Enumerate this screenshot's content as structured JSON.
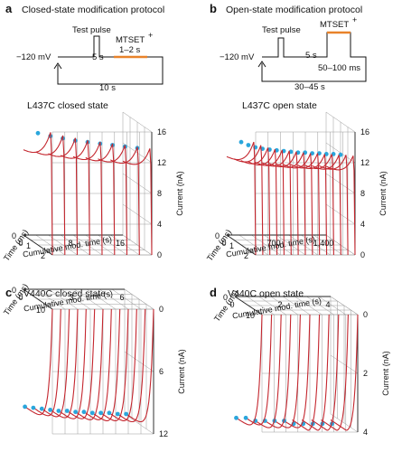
{
  "panels": {
    "a": {
      "letter": "a",
      "protocol_title": "Closed-state modification protocol",
      "holding": "−120 mV",
      "test_pulse": "Test pulse",
      "mtset": "MTSET",
      "mtset_sup": "+",
      "gap": "5 s",
      "mtset_duration": "1–2 s",
      "cycle": "10 s",
      "plot_title": "L437C closed state",
      "y_label": "Current (nA)",
      "y_ticks": [
        "0",
        "4",
        "8",
        "12",
        "16"
      ],
      "x_label": "Cumulative mod. time (s)",
      "x_ticks": [
        "0",
        "8",
        "16"
      ],
      "t_label": "Time (ms)",
      "t_ticks": [
        "0",
        "1",
        "2"
      ]
    },
    "b": {
      "letter": "b",
      "protocol_title": "Open-state modification protocol",
      "holding": "−120 mV",
      "test_pulse": "Test pulse",
      "mtset": "MTSET",
      "mtset_sup": "+",
      "gap": "5 s",
      "mtset_duration": "50–100 ms",
      "cycle": "30–45 s",
      "plot_title": "L437C open state",
      "y_label": "Current (nA)",
      "y_ticks": [
        "0",
        "4",
        "8",
        "12",
        "16"
      ],
      "x_label": "Cumulative mod. time (s)",
      "x_ticks": [
        "0",
        "700",
        "1,400"
      ],
      "t_label": "Time (ms)",
      "t_ticks": [
        "0",
        "1",
        "2"
      ]
    },
    "c": {
      "letter": "c",
      "plot_title": "V440C closed state",
      "y_label": "Current (nA)",
      "y_ticks": [
        "0",
        "6",
        "12"
      ],
      "x_label": "Cumulative mod. time (s)",
      "x_ticks": [
        "0",
        "3",
        "6"
      ],
      "t_label": "Time (ms)",
      "t_ticks": [
        "0",
        "10"
      ]
    },
    "d": {
      "letter": "d",
      "plot_title": "V440C open state",
      "y_label": "Current (nA)",
      "y_ticks": [
        "0",
        "2",
        "4"
      ],
      "x_label": "Cumulative mod. time (s)",
      "x_ticks": [
        "0",
        "2",
        "4"
      ],
      "t_label": "Time (ms)",
      "t_ticks": [
        "0",
        "10"
      ]
    }
  },
  "colors": {
    "trace": "#c4262e",
    "peak_marker": "#2aa6dc",
    "mtset_bar": "#e8822a",
    "grid": "#9a9a9a",
    "text": "#111111"
  },
  "chart_data": [
    {
      "type": "line",
      "panel": "a",
      "title": "L437C closed state",
      "xlabel": "Cumulative mod. time (s)",
      "ylabel": "Current (nA)",
      "zlabel": "Time (ms)",
      "x": [
        0,
        2,
        4,
        6,
        8,
        10,
        12,
        14,
        16
      ],
      "peak_current": [
        15.0,
        14.6,
        14.3,
        14.0,
        13.8,
        13.6,
        13.4,
        13.2,
        13.0
      ],
      "ylim": [
        0,
        16
      ],
      "xlim": [
        0,
        16
      ]
    },
    {
      "type": "line",
      "panel": "b",
      "title": "L437C open state",
      "xlabel": "Cumulative mod. time (s)",
      "ylabel": "Current (nA)",
      "zlabel": "Time (ms)",
      "x": [
        0,
        100,
        200,
        300,
        400,
        500,
        600,
        700,
        800,
        900,
        1000,
        1100,
        1200,
        1300,
        1400
      ],
      "peak_current": [
        13.8,
        13.4,
        13.1,
        12.9,
        12.8,
        12.7,
        12.6,
        12.5,
        12.4,
        12.4,
        12.3,
        12.3,
        12.2,
        12.2,
        12.1
      ],
      "ylim": [
        0,
        16
      ],
      "xlim": [
        0,
        1400
      ]
    },
    {
      "type": "line",
      "panel": "c",
      "title": "V440C closed state",
      "xlabel": "Cumulative mod. time (s)",
      "ylabel": "Current (nA)",
      "zlabel": "Time (ms)",
      "x": [
        0,
        0.5,
        1,
        1.5,
        2,
        2.5,
        3,
        3.5,
        4,
        4.5,
        5,
        5.5,
        6
      ],
      "peak_current": [
        11.2,
        11.3,
        11.4,
        11.5,
        11.6,
        11.6,
        11.7,
        11.7,
        11.8,
        11.8,
        11.8,
        11.9,
        11.9
      ],
      "ylim": [
        0,
        12
      ],
      "xlim": [
        0,
        6
      ]
    },
    {
      "type": "line",
      "panel": "d",
      "title": "V440C open state",
      "xlabel": "Cumulative mod. time (s)",
      "ylabel": "Current (nA)",
      "zlabel": "Time (ms)",
      "x": [
        0,
        0.4,
        0.8,
        1.2,
        1.6,
        2.0,
        2.4,
        2.8,
        3.2,
        3.6,
        4.0
      ],
      "peak_current": [
        4.1,
        4.1,
        4.2,
        4.2,
        4.2,
        4.2,
        4.3,
        4.3,
        4.3,
        4.3,
        4.3
      ],
      "ylim": [
        0,
        4
      ],
      "xlim": [
        0,
        4
      ]
    }
  ]
}
